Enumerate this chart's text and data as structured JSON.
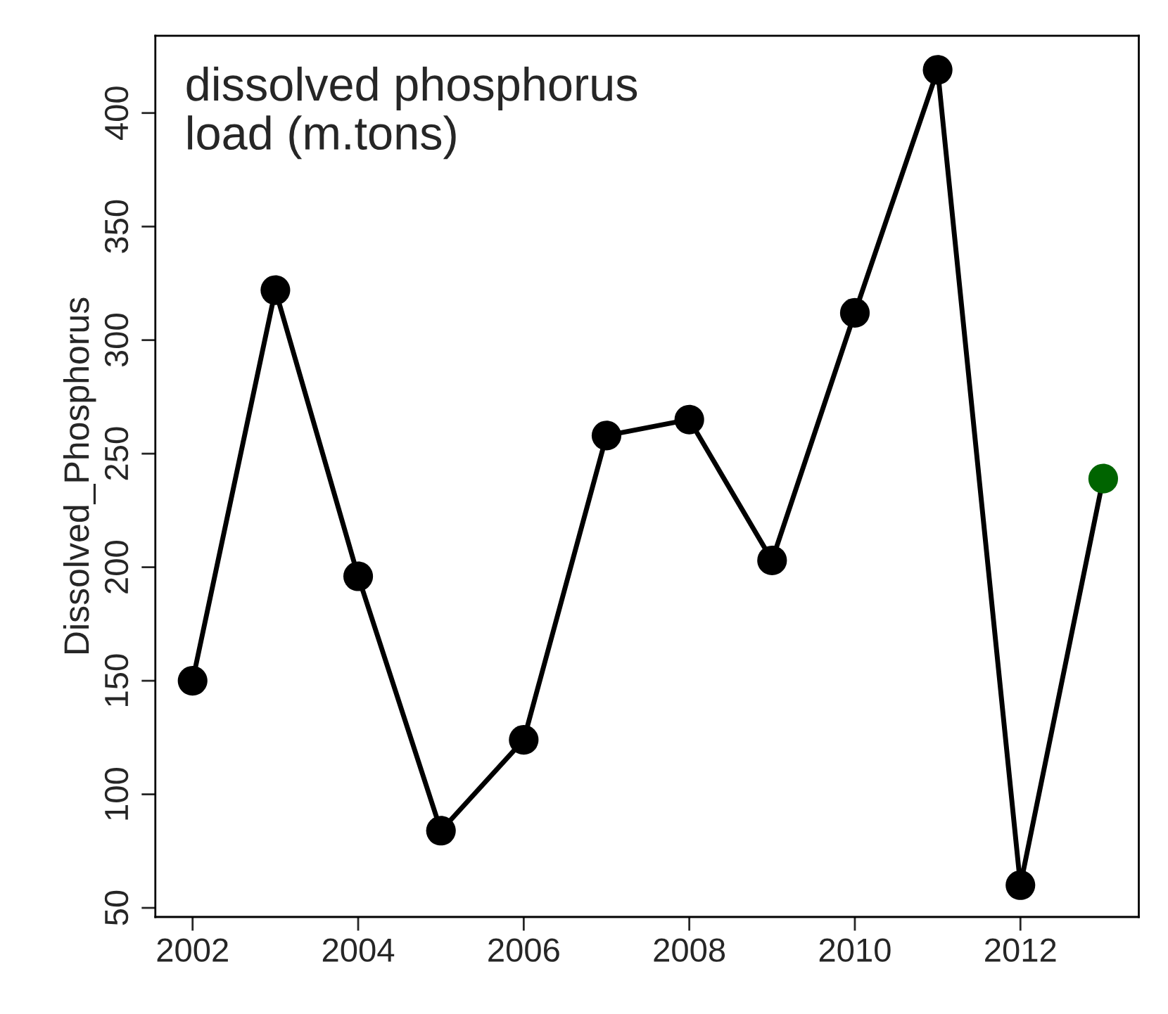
{
  "chart_data": {
    "type": "line",
    "ylabel": "Dissolved_Phosphorus",
    "annotations": [
      "dissolved phosphorus\nload (m.tons)"
    ],
    "x": [
      2002,
      2003,
      2004,
      2005,
      2006,
      2007,
      2008,
      2009,
      2010,
      2011,
      2012,
      2013
    ],
    "series": [
      {
        "color": "#000000",
        "colors": [
          "#000000",
          "#000000",
          "#000000",
          "#000000",
          "#000000",
          "#000000",
          "#000000",
          "#000000",
          "#000000",
          "#000000",
          "#000000",
          "#006400"
        ],
        "values": [
          150,
          322,
          196,
          84,
          124,
          258,
          265,
          203,
          312,
          419,
          60,
          239
        ]
      }
    ],
    "xlim": [
      2001.55,
      2013.43
    ],
    "ylim": [
      46,
      434
    ],
    "xticks": [
      2002,
      2004,
      2006,
      2008,
      2010,
      2012
    ],
    "yticks": [
      50,
      100,
      150,
      200,
      250,
      300,
      350,
      400
    ],
    "grid": false,
    "legend": false,
    "marker": "circle",
    "line_style": "solid"
  }
}
